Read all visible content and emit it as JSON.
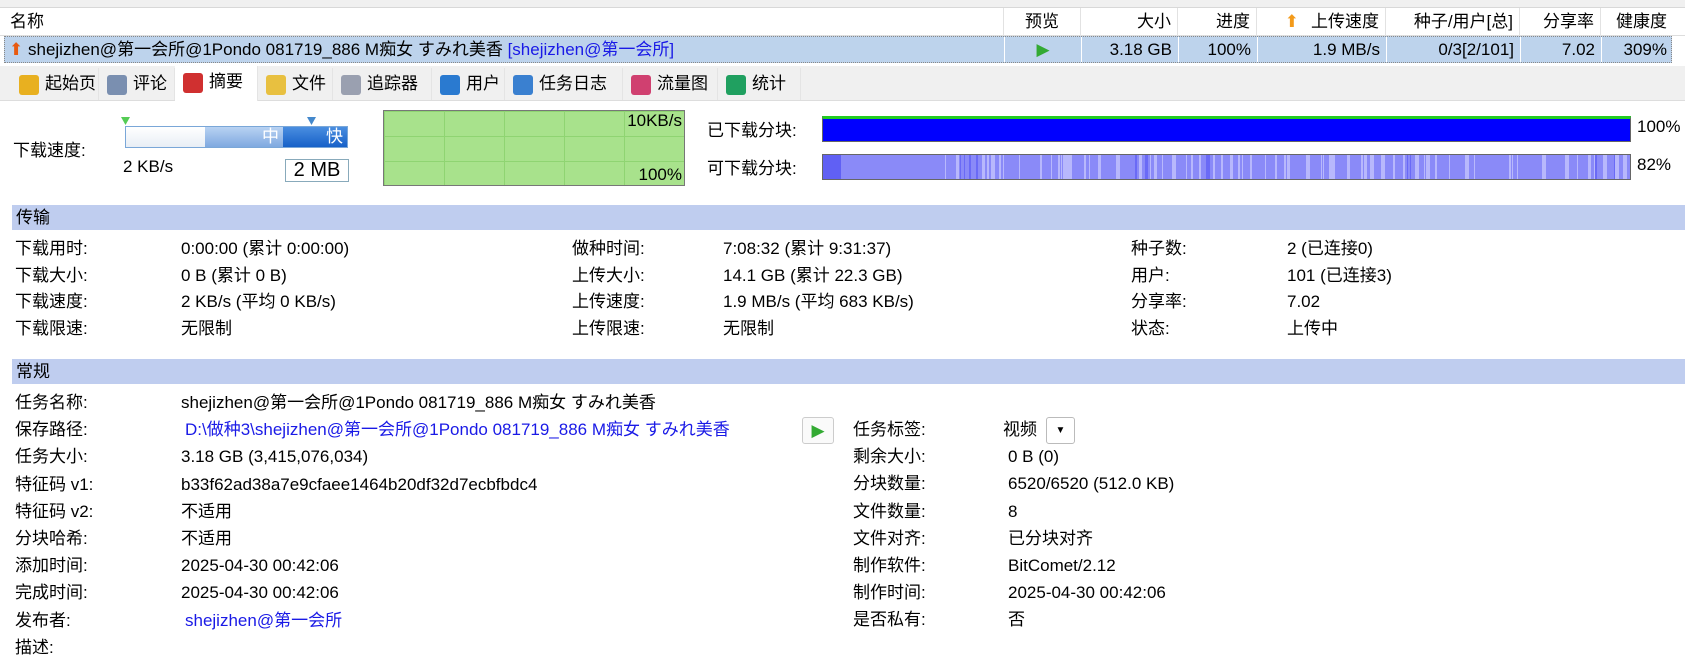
{
  "list": {
    "columns": [
      "名称",
      "预览",
      "大小",
      "进度",
      "上传速度",
      "种子/用户[总]",
      "分享率",
      "健康度"
    ],
    "row": {
      "name": "shejizhen@第一会所@1Pondo 081719_886  M痴女 すみれ美香",
      "tag": "[shejizhen@第一会所]",
      "preview_icon": "play-icon",
      "size": "3.18 GB",
      "progress": "100%",
      "upload_speed": "1.9 MB/s",
      "seeds_peers": "0/3[2/101]",
      "share_ratio": "7.02",
      "health": "309%"
    }
  },
  "tabs": [
    {
      "label": "起始页",
      "icon": "home-page-icon",
      "color": "#e8b020"
    },
    {
      "label": "评论",
      "icon": "comment-icon",
      "color": "#7a8fb0"
    },
    {
      "label": "摘要",
      "icon": "summary-icon",
      "color": "#d03030"
    },
    {
      "label": "文件",
      "icon": "file-icon",
      "color": "#e8c040"
    },
    {
      "label": "追踪器",
      "icon": "tracker-icon",
      "color": "#9aa0b0"
    },
    {
      "label": "用户",
      "icon": "users-icon",
      "color": "#2a7ad0"
    },
    {
      "label": "任务日志",
      "icon": "info-icon",
      "color": "#3a80d0"
    },
    {
      "label": "流量图",
      "icon": "traffic-chart-icon",
      "color": "#d04070"
    },
    {
      "label": "统计",
      "icon": "statistics-icon",
      "color": "#20a060"
    }
  ],
  "active_tab": "摘要",
  "speed": {
    "label": "下载速度:",
    "mid": "中",
    "fast": "快",
    "current": "2 KB/s",
    "limit_value": "2 MB",
    "graph_top": "10KB/s",
    "graph_bottom": "100%"
  },
  "pieces": {
    "downloaded_label": "已下载分块:",
    "downloaded_pct": "100%",
    "available_label": "可下载分块:",
    "available_pct": "82%",
    "downloaded_color": "#0000ff",
    "available_color": "#8a8af8"
  },
  "transfer": {
    "title": "传输",
    "cols": [
      [
        [
          "下载用时:",
          "0:00:00 (累计 0:00:00)"
        ],
        [
          "下载大小:",
          "0 B (累计 0 B)"
        ],
        [
          "下载速度:",
          "2 KB/s (平均 0 KB/s)"
        ],
        [
          "下载限速:",
          "无限制"
        ]
      ],
      [
        [
          "做种时间:",
          "7:08:32 (累计 9:31:37)"
        ],
        [
          "上传大小:",
          "14.1 GB (累计 22.3 GB)"
        ],
        [
          "上传速度:",
          "1.9 MB/s (平均 683 KB/s)"
        ],
        [
          "上传限速:",
          "无限制"
        ]
      ],
      [
        [
          "种子数:",
          "2 (已连接0)"
        ],
        [
          "用户:",
          "101 (已连接3)"
        ],
        [
          "分享率:",
          "7.02"
        ],
        [
          "状态:",
          "上传中"
        ]
      ]
    ]
  },
  "general": {
    "title": "常规",
    "left": [
      [
        "任务名称:",
        "shejizhen@第一会所@1Pondo 081719_886  M痴女 すみれ美香"
      ],
      [
        "保存路径:",
        "D:\\做种3\\shejizhen@第一会所@1Pondo 081719_886  M痴女 すみれ美香"
      ],
      [
        "任务大小:",
        "3.18 GB (3,415,076,034)"
      ],
      [
        "特征码 v1:",
        "b33f62ad38a7e9cfaee1464b20df32d7ecbfbdc4"
      ],
      [
        "特征码 v2:",
        "不适用"
      ],
      [
        "分块哈希:",
        "不适用"
      ],
      [
        "添加时间:",
        "2025-04-30 00:42:06"
      ],
      [
        "完成时间:",
        "2025-04-30 00:42:06"
      ],
      [
        "发布者:",
        "shejizhen@第一会所"
      ],
      [
        "描述:",
        ""
      ]
    ],
    "right": [
      [
        "任务标签:",
        "视频"
      ],
      [
        "剩余大小:",
        "0 B (0)"
      ],
      [
        "分块数量:",
        "6520/6520 (512.0 KB)"
      ],
      [
        "文件数量:",
        "8"
      ],
      [
        "文件对齐:",
        "已分块对齐"
      ],
      [
        "制作软件:",
        "BitComet/2.12"
      ],
      [
        "制作时间:",
        "2025-04-30 00:42:06"
      ],
      [
        "是否私有:",
        "否"
      ]
    ]
  }
}
